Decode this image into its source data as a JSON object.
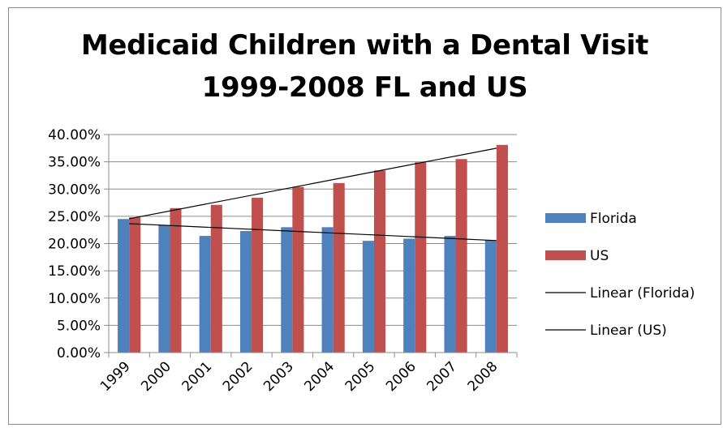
{
  "chart_data": {
    "type": "bar",
    "title_lines": [
      "Medicaid Children with a Dental Visit",
      "1999-2008 FL and US"
    ],
    "categories": [
      "1999",
      "2000",
      "2001",
      "2002",
      "2003",
      "2004",
      "2005",
      "2006",
      "2007",
      "2008"
    ],
    "series": [
      {
        "name": "Florida",
        "color": "#4f81bd",
        "values": [
          24.5,
          23.4,
          21.4,
          22.3,
          23.0,
          23.0,
          20.5,
          20.9,
          21.4,
          20.6
        ]
      },
      {
        "name": "US",
        "color": "#c0504d",
        "values": [
          24.8,
          26.5,
          27.1,
          28.4,
          30.4,
          31.1,
          33.4,
          34.9,
          35.5,
          38.1
        ]
      }
    ],
    "trendlines": [
      {
        "name": "Linear (Florida)",
        "series": "Florida",
        "color": "#000000"
      },
      {
        "name": "Linear (US)",
        "series": "US",
        "color": "#000000"
      }
    ],
    "y_ticks": [
      "0.00%",
      "5.00%",
      "10.00%",
      "15.00%",
      "20.00%",
      "25.00%",
      "30.00%",
      "35.00%",
      "40.00%"
    ],
    "ylim": [
      0,
      40
    ],
    "ystep": 5,
    "y_format": "percent-2dp",
    "grid": true,
    "legend_position": "right"
  }
}
